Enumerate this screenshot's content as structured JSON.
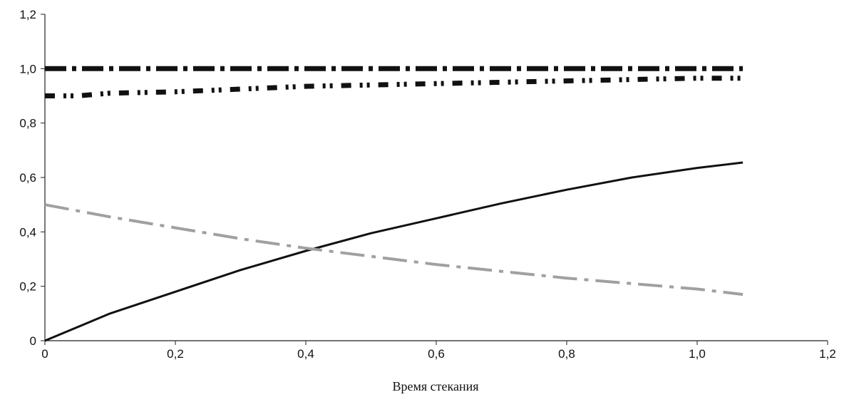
{
  "chart_data": {
    "type": "line",
    "title": "",
    "xlabel": "Время стекания",
    "ylabel": "",
    "xlim": [
      0,
      1.2
    ],
    "ylim": [
      0,
      1.2
    ],
    "x_ticks": [
      "0",
      "0,2",
      "0,4",
      "0,6",
      "0,8",
      "1,0",
      "1,2"
    ],
    "y_ticks": [
      "0",
      "0,2",
      "0,4",
      "0,6",
      "0,8",
      "1,0",
      "1,2"
    ],
    "grid": false,
    "legend": "none",
    "series": [
      {
        "color": "#111111",
        "style": "dash-dot-heavy",
        "points": [
          [
            0,
            1.0
          ],
          [
            0.2,
            1.0
          ],
          [
            0.4,
            1.0
          ],
          [
            0.6,
            1.0
          ],
          [
            0.8,
            1.0
          ],
          [
            1.0,
            1.0
          ],
          [
            1.07,
            1.0
          ]
        ]
      },
      {
        "color": "#111111",
        "style": "dash-dot-dot",
        "points": [
          [
            0,
            0.9
          ],
          [
            0.05,
            0.9
          ],
          [
            0.1,
            0.91
          ],
          [
            0.2,
            0.915
          ],
          [
            0.3,
            0.925
          ],
          [
            0.4,
            0.935
          ],
          [
            0.5,
            0.94
          ],
          [
            0.6,
            0.945
          ],
          [
            0.7,
            0.95
          ],
          [
            0.8,
            0.955
          ],
          [
            0.9,
            0.96
          ],
          [
            1.0,
            0.965
          ],
          [
            1.07,
            0.965
          ]
        ]
      },
      {
        "color": "#111111",
        "style": "solid",
        "points": [
          [
            0,
            0.0
          ],
          [
            0.1,
            0.1
          ],
          [
            0.2,
            0.18
          ],
          [
            0.3,
            0.26
          ],
          [
            0.4,
            0.33
          ],
          [
            0.5,
            0.395
          ],
          [
            0.6,
            0.45
          ],
          [
            0.7,
            0.505
          ],
          [
            0.8,
            0.555
          ],
          [
            0.9,
            0.6
          ],
          [
            1.0,
            0.635
          ],
          [
            1.07,
            0.655
          ]
        ]
      },
      {
        "color": "#a0a0a0",
        "style": "long-dash-dot",
        "points": [
          [
            0,
            0.5
          ],
          [
            0.1,
            0.455
          ],
          [
            0.2,
            0.415
          ],
          [
            0.3,
            0.375
          ],
          [
            0.4,
            0.34
          ],
          [
            0.5,
            0.31
          ],
          [
            0.6,
            0.28
          ],
          [
            0.7,
            0.255
          ],
          [
            0.8,
            0.23
          ],
          [
            0.9,
            0.21
          ],
          [
            1.0,
            0.19
          ],
          [
            1.07,
            0.17
          ]
        ]
      }
    ]
  }
}
